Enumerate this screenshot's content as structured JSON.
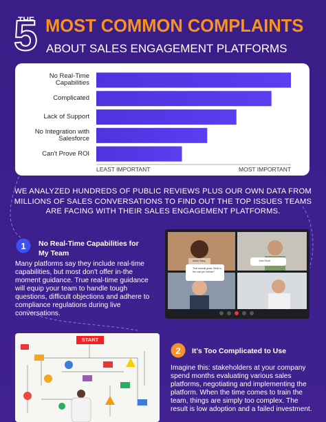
{
  "header": {
    "pre": "THE",
    "number": "5",
    "title": "MOST COMMON COMPLAINTS",
    "subtitle": "ABOUT SALES ENGAGEMENT PLATFORMS"
  },
  "chart_data": {
    "type": "hbar",
    "categories": [
      "No Real-Time Capabilities",
      "Complicated",
      "Lack of Support",
      "No Integration with Salesforce",
      "Can't Prove ROI"
    ],
    "values": [
      100,
      90,
      72,
      57,
      44
    ],
    "color": "#4f33df",
    "xlim": [
      0,
      100
    ],
    "axis_low_label": "LEAST IMPORTANT",
    "axis_high_label": "MOST IMPORTANT"
  },
  "intro": "WE ANALYZED HUNDREDS OF PUBLIC REVIEWS PLUS OUR OWN DATA FROM MILLIONS OF SALES CONVERSATIONS TO FIND OUT THE TOP ISSUES TEAMS ARE FACING WITH THEIR SALES ENGAGEMENT PLATFORMS.",
  "sections": [
    {
      "number": "1",
      "heading": "No Real-Time Capabilities for My Team",
      "body": "Many platforms say they include real-time capabilities, but most don't offer in-the moment guidance. True real-time guidance will equip your team to handle tough questions, difficult objections and adhere to compliance regulations during live conversations."
    },
    {
      "number": "2",
      "heading": "It's Too Complicated to Use",
      "body": "Imagine this: stakeholders at your company spend months evaluating various sales platforms, negotiating and implementing the platform. When the time comes to train the team, things are simply too complex. The result is low adoption and a failed investment."
    }
  ],
  "video_call": {
    "caller": "Adam Sang",
    "message": "That sounds great. What is the cost per license?",
    "host": "John Scott"
  },
  "flowchart": {
    "start": "START"
  }
}
